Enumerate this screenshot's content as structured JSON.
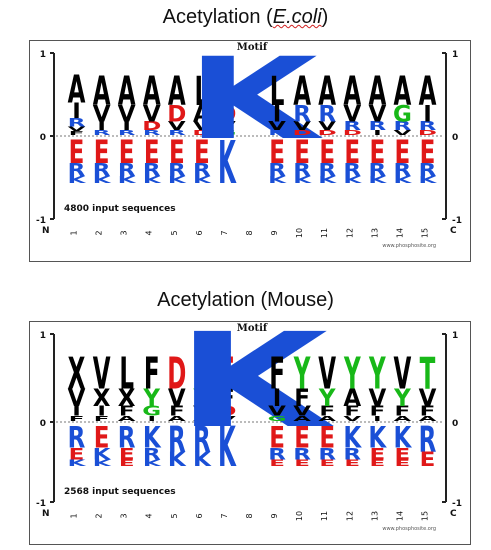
{
  "panels": [
    {
      "title_prefix": "Acetylation (",
      "title_species": "E.coli",
      "title_suffix": ")",
      "motif_label": "Motif",
      "sequences_label": "4800 input sequences",
      "watermark": "www.phosphosite.org",
      "y_ticks": {
        "top": "1",
        "zero": "0",
        "bottom": "-1"
      },
      "n_label": "N",
      "c_label": "C",
      "positions": [
        "1",
        "2",
        "3",
        "4",
        "5",
        "6",
        "7",
        "8",
        "9",
        "10",
        "11",
        "12",
        "13",
        "14",
        "15"
      ],
      "top_letters": [
        [
          "A",
          "I",
          "R",
          "V",
          "F"
        ],
        [
          "A",
          "V",
          "I",
          "R"
        ],
        [
          "A",
          "V",
          "I",
          "R"
        ],
        [
          "A",
          "V",
          "D",
          "R"
        ],
        [
          "A",
          "D",
          "V",
          "R"
        ],
        [
          "L",
          "A",
          "V",
          "D"
        ],
        [
          "E",
          "D",
          "V",
          "G"
        ],
        [
          "K"
        ],
        [
          "L",
          "I",
          "V",
          "R"
        ],
        [
          "A",
          "R",
          "V",
          "D"
        ],
        [
          "A",
          "R",
          "V",
          "D"
        ],
        [
          "A",
          "V",
          "R",
          "D"
        ],
        [
          "A",
          "V",
          "R",
          "I"
        ],
        [
          "A",
          "G",
          "R",
          "V"
        ],
        [
          "A",
          "I",
          "R",
          "D"
        ]
      ],
      "bottom_letters": [
        [
          "E",
          "R",
          "K"
        ],
        [
          "E",
          "R",
          "K"
        ],
        [
          "E",
          "R",
          "K"
        ],
        [
          "E",
          "R",
          "K"
        ],
        [
          "E",
          "R",
          "K"
        ],
        [
          "E",
          "R",
          "K"
        ],
        [
          "K"
        ],
        [],
        [
          "E",
          "R",
          "K"
        ],
        [
          "E",
          "R",
          "K"
        ],
        [
          "E",
          "R",
          "K"
        ],
        [
          "E",
          "R",
          "K"
        ],
        [
          "E",
          "R",
          "K"
        ],
        [
          "E",
          "R",
          "K"
        ],
        [
          "E",
          "R",
          "K"
        ]
      ]
    },
    {
      "title_prefix": "Acetylation (Mouse)",
      "title_species": "",
      "title_suffix": "",
      "motif_label": "Motif",
      "sequences_label": "2568 input sequences",
      "watermark": "www.phosphosite.org",
      "y_ticks": {
        "top": "1",
        "zero": "0",
        "bottom": "-1"
      },
      "n_label": "N",
      "c_label": "C",
      "positions": [
        "1",
        "2",
        "3",
        "4",
        "5",
        "6",
        "7",
        "8",
        "9",
        "10",
        "11",
        "12",
        "13",
        "14",
        "15"
      ],
      "top_letters": [
        [
          "X",
          "V",
          "I",
          "F"
        ],
        [
          "V",
          "X",
          "I",
          "F"
        ],
        [
          "L",
          "X",
          "F",
          "A"
        ],
        [
          "F",
          "Y",
          "G",
          "I"
        ],
        [
          "D",
          "V",
          "F",
          "A"
        ],
        [
          "L",
          "Y",
          "V",
          "A"
        ],
        [
          "E",
          "F",
          "D",
          "V"
        ],
        [
          "K"
        ],
        [
          "F",
          "I",
          "V",
          "G"
        ],
        [
          "Y",
          "F",
          "V",
          "A"
        ],
        [
          "V",
          "Y",
          "F",
          "A"
        ],
        [
          "Y",
          "A",
          "F",
          "V"
        ],
        [
          "Y",
          "V",
          "F",
          "I"
        ],
        [
          "V",
          "Y",
          "F",
          "A"
        ],
        [
          "T",
          "V",
          "F",
          "A"
        ]
      ],
      "bottom_letters": [
        [
          "R",
          "E",
          "K"
        ],
        [
          "E",
          "K",
          "K"
        ],
        [
          "R",
          "E",
          "E"
        ],
        [
          "K",
          "R",
          "K"
        ],
        [
          "R",
          "K"
        ],
        [
          "R",
          "K"
        ],
        [
          "K"
        ],
        [],
        [
          "E",
          "R",
          "E"
        ],
        [
          "E",
          "R",
          "E"
        ],
        [
          "E",
          "R",
          "E"
        ],
        [
          "K",
          "R",
          "E"
        ],
        [
          "K",
          "E",
          "E"
        ],
        [
          "K",
          "E",
          "E"
        ],
        [
          "R",
          "E"
        ]
      ]
    }
  ],
  "letter_colors": {
    "K": "#1a4fd6",
    "R": "#1a4fd6",
    "H": "#1a4fd6",
    "E": "#e01818",
    "D": "#e01818",
    "G": "#18b818",
    "S": "#18b818",
    "T": "#18b818",
    "Y": "#18b818",
    "Q": "#d018d0",
    "N": "#d018d0",
    "A": "#000000",
    "V": "#000000",
    "L": "#000000",
    "I": "#000000",
    "F": "#000000",
    "M": "#000000",
    "P": "#000000",
    "W": "#000000",
    "C": "#000000",
    "X": "#000000"
  }
}
